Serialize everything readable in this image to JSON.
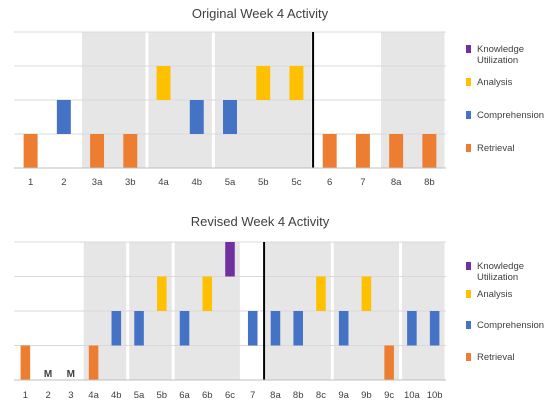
{
  "colors": {
    "knowledge": "#7030a0",
    "analysis": "#ffc000",
    "comprehension": "#4472c4",
    "retrieval": "#ed7d31",
    "shade": "#e7e6e6",
    "grid": "#d9d9d9",
    "text": "#404040",
    "divider": "#000000"
  },
  "levels": [
    "Retrieval",
    "Comprehension",
    "Analysis",
    "Knowledge Utilization"
  ],
  "chart_data": [
    {
      "type": "bar",
      "title": "Original Week 4 Activity",
      "categories": [
        "1",
        "2",
        "3a",
        "3b",
        "4a",
        "4b",
        "5a",
        "5b",
        "5c",
        "6",
        "7",
        "8a",
        "8b"
      ],
      "values": [
        1,
        2,
        1,
        1,
        3,
        2,
        2,
        3,
        3,
        1,
        1,
        1,
        1
      ],
      "value_meaning": "1=Retrieval, 2=Comprehension, 3=Analysis, 4=Knowledge Utilization",
      "shaded_groups": [
        [
          "3a",
          "3b"
        ],
        [
          "4a",
          "4b"
        ],
        [
          "5a",
          "5b",
          "5c"
        ],
        [
          "8a",
          "8b"
        ]
      ],
      "divider_after": "5c",
      "category_labels": {},
      "ylim": [
        0,
        4
      ],
      "grid": true,
      "legend": {
        "position": "right",
        "entries": [
          {
            "name": "Knowledge Utilization",
            "color": "#7030a0"
          },
          {
            "name": "Analysis",
            "color": "#ffc000"
          },
          {
            "name": "Comprehension",
            "color": "#4472c4"
          },
          {
            "name": "Retrieval",
            "color": "#ed7d31"
          }
        ]
      }
    },
    {
      "type": "bar",
      "title": "Revised Week 4 Activity",
      "categories": [
        "1",
        "2",
        "3",
        "4a",
        "4b",
        "5a",
        "5b",
        "6a",
        "6b",
        "6c",
        "7",
        "8a",
        "8b",
        "8c",
        "9a",
        "9b",
        "9c",
        "10a",
        "10b"
      ],
      "values": [
        1,
        0,
        0,
        1,
        2,
        2,
        3,
        2,
        3,
        4,
        2,
        2,
        2,
        3,
        2,
        3,
        1,
        2,
        2
      ],
      "value_meaning": "0=none, 1=Retrieval, 2=Comprehension, 3=Analysis, 4=Knowledge Utilization",
      "shaded_groups": [
        [
          "4a",
          "4b"
        ],
        [
          "5a",
          "5b"
        ],
        [
          "6a",
          "6b",
          "6c"
        ],
        [
          "8a",
          "8b",
          "8c"
        ],
        [
          "9a",
          "9b",
          "9c"
        ],
        [
          "10a",
          "10b"
        ]
      ],
      "divider_after": "7",
      "category_labels": {
        "2": "M",
        "3": "M"
      },
      "ylim": [
        0,
        4
      ],
      "grid": true,
      "legend": {
        "position": "right",
        "entries": [
          {
            "name": "Knowledge Utilization",
            "color": "#7030a0"
          },
          {
            "name": "Analysis",
            "color": "#ffc000"
          },
          {
            "name": "Comprehension",
            "color": "#4472c4"
          },
          {
            "name": "Retrieval",
            "color": "#ed7d31"
          }
        ]
      }
    }
  ]
}
